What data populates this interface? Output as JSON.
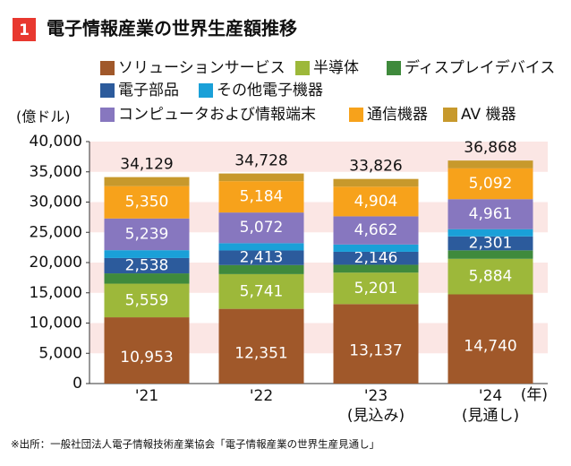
{
  "chart_data": {
    "type": "stacked_bar",
    "badge": "1",
    "title": "電子情報産業の世界生産額推移",
    "y_label": "(億ドル)",
    "x_unit": "(年)",
    "categories": [
      "'21",
      "'22",
      "'23",
      "'24"
    ],
    "category_notes": [
      null,
      null,
      "(見込み)",
      "(見通し)"
    ],
    "series": [
      {
        "name": "ソリューションサービス",
        "color": "#a0582a",
        "values": [
          10953,
          12351,
          13137,
          14740
        ],
        "value_labels": [
          "10,953",
          "12,351",
          "13,137",
          "14,740"
        ]
      },
      {
        "name": "半導体",
        "color": "#9db83a",
        "values": [
          5559,
          5741,
          5201,
          5884
        ],
        "value_labels": [
          "5,559",
          "5,741",
          "5,201",
          "5,884"
        ]
      },
      {
        "name": "ディスプレイデバイス",
        "color": "#3f8a3c",
        "values": [
          1700,
          1500,
          1300,
          1400
        ]
      },
      {
        "name": "電子部品",
        "color": "#2c5b9c",
        "values": [
          2538,
          2413,
          2146,
          2301
        ],
        "value_labels": [
          "2,538",
          "2,413",
          "2,146",
          "2,301"
        ]
      },
      {
        "name": "その他電子機器",
        "color": "#1aa0d8",
        "values": [
          1300,
          1200,
          1200,
          1200
        ]
      },
      {
        "name": "コンピュータおよび情報端末",
        "color": "#8777bf",
        "values": [
          5239,
          5072,
          4662,
          4961
        ],
        "value_labels": [
          "5,239",
          "5,072",
          "4,662",
          "4,961"
        ]
      },
      {
        "name": "通信機器",
        "color": "#f7a21b",
        "values": [
          5350,
          5184,
          4904,
          5092
        ],
        "value_labels": [
          "5,350",
          "5,184",
          "4,904",
          "5,092"
        ]
      },
      {
        "name": "AV 機器",
        "color": "#c7992c",
        "values": [
          1490,
          1267,
          1276,
          1290
        ]
      }
    ],
    "totals": [
      34129,
      34728,
      33826,
      36868
    ],
    "total_labels": [
      "34,129",
      "34,728",
      "33,826",
      "36,868"
    ],
    "ylim": [
      0,
      40000
    ],
    "yticks": [
      0,
      {
        "value": 5000,
        "label": "5,000"
      },
      {
        "value": 10000,
        "label": "10,000"
      },
      {
        "value": 15000,
        "label": "15,000"
      },
      {
        "value": 20000,
        "label": "20,000"
      },
      {
        "value": 25000,
        "label": "25,000"
      },
      {
        "value": 30000,
        "label": "30,000"
      },
      {
        "value": 35000,
        "label": "35,000"
      },
      {
        "value": 40000,
        "label": "40,000"
      }
    ],
    "band_color": "#fbe6e4",
    "source": "※出所：一般社団法人電子情報技術産業協会「電子情報産業の世界生産見通し」"
  }
}
